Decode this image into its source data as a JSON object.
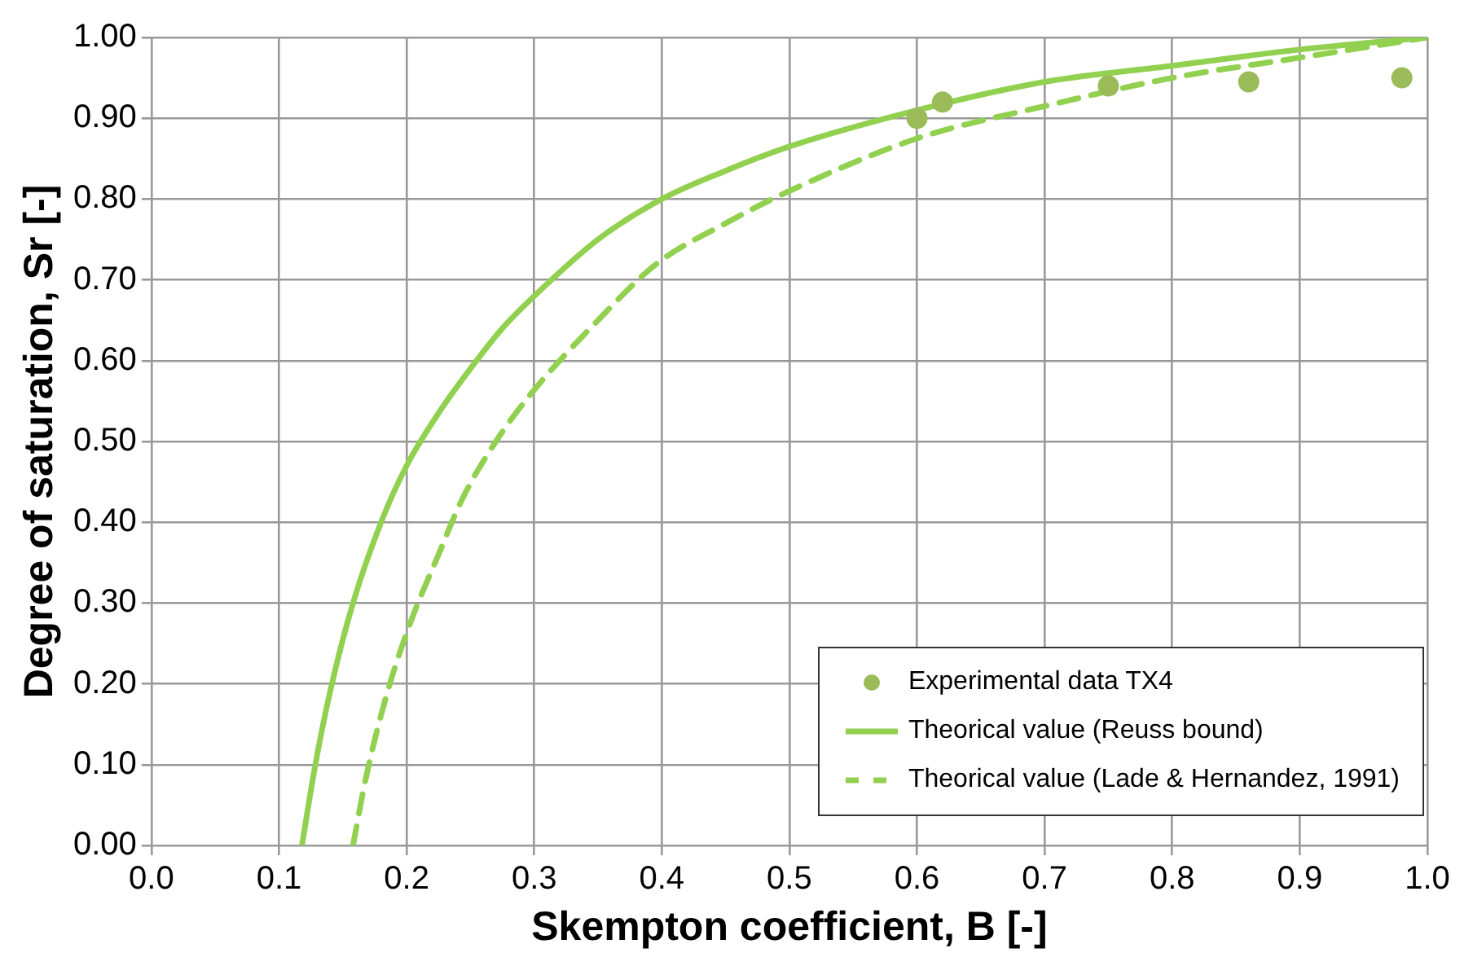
{
  "chart_data": {
    "type": "line",
    "xlabel": "Skempton coefficient, B [-]",
    "ylabel": "Degree of saturation, Sr [-]",
    "xlim": [
      0,
      1
    ],
    "xticks": [
      {
        "value": 0,
        "label": "0.0"
      },
      0.1,
      0.2,
      0.3,
      0.4,
      0.5,
      0.6,
      0.7,
      0.8,
      0.9,
      {
        "value": 1,
        "label": "1.0"
      }
    ],
    "ylim": [
      0,
      1
    ],
    "yticks": [
      {
        "value": 0,
        "label": "0.00"
      },
      {
        "value": 0.1,
        "label": "0.10"
      },
      {
        "value": 0.2,
        "label": "0.20"
      },
      {
        "value": 0.3,
        "label": "0.30"
      },
      {
        "value": 0.4,
        "label": "0.40"
      },
      {
        "value": 0.5,
        "label": "0.50"
      },
      {
        "value": 0.6,
        "label": "0.60"
      },
      {
        "value": 0.7,
        "label": "0.70"
      },
      {
        "value": 0.8,
        "label": "0.80"
      },
      {
        "value": 0.9,
        "label": "0.90"
      },
      {
        "value": 1,
        "label": "1.00"
      }
    ],
    "grid": true,
    "legend": "bottom right",
    "series": [
      {
        "name": "Experimental data TX4",
        "type": "scatter",
        "marker": "circle",
        "color": "#9bbb59",
        "x": [
          0.6,
          0.62,
          0.75,
          0.86,
          0.98
        ],
        "values": [
          0.9,
          0.92,
          0.94,
          0.945,
          0.95
        ]
      },
      {
        "name": "Theorical value (Reuss bound)",
        "marker": "none",
        "line_style": "solid",
        "color": "#92d050",
        "x": [
          0.118,
          0.128,
          0.14,
          0.158,
          0.18,
          0.2,
          0.225,
          0.25,
          0.275,
          0.3,
          0.35,
          0.4,
          0.45,
          0.5,
          0.6,
          0.7,
          0.8,
          0.9,
          1.0
        ],
        "values": [
          0,
          0.096,
          0.19,
          0.3,
          0.4,
          0.47,
          0.535,
          0.59,
          0.64,
          0.68,
          0.75,
          0.8,
          0.835,
          0.865,
          0.91,
          0.945,
          0.965,
          0.985,
          1.0
        ]
      },
      {
        "name": "Theorical value (Lade & Hernandez, 1991)",
        "marker": "none",
        "line_style": "dashed",
        "color": "#92d050",
        "x": [
          0.158,
          0.168,
          0.185,
          0.204,
          0.225,
          0.244,
          0.27,
          0.298,
          0.35,
          0.396,
          0.45,
          0.5,
          0.6,
          0.7,
          0.8,
          0.9,
          1.0
        ],
        "values": [
          0,
          0.083,
          0.19,
          0.28,
          0.36,
          0.43,
          0.5,
          0.56,
          0.65,
          0.72,
          0.77,
          0.81,
          0.875,
          0.915,
          0.95,
          0.975,
          1.0
        ]
      }
    ]
  }
}
